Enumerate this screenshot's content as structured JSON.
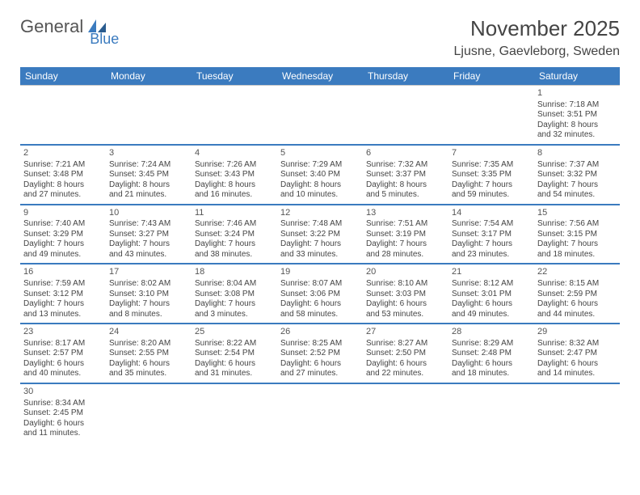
{
  "logo": {
    "part1": "General",
    "part2": "Blue"
  },
  "header": {
    "title": "November 2025",
    "location": "Ljusne, Gaevleborg, Sweden"
  },
  "dow": [
    "Sunday",
    "Monday",
    "Tuesday",
    "Wednesday",
    "Thursday",
    "Friday",
    "Saturday"
  ],
  "colors": {
    "accent": "#3b7bbf",
    "border": "#c8c8c8",
    "text": "#444444",
    "bg": "#ffffff"
  },
  "weeks": [
    [
      null,
      null,
      null,
      null,
      null,
      null,
      {
        "n": "1",
        "sr": "Sunrise: 7:18 AM",
        "ss": "Sunset: 3:51 PM",
        "d1": "Daylight: 8 hours",
        "d2": "and 32 minutes."
      }
    ],
    [
      {
        "n": "2",
        "sr": "Sunrise: 7:21 AM",
        "ss": "Sunset: 3:48 PM",
        "d1": "Daylight: 8 hours",
        "d2": "and 27 minutes."
      },
      {
        "n": "3",
        "sr": "Sunrise: 7:24 AM",
        "ss": "Sunset: 3:45 PM",
        "d1": "Daylight: 8 hours",
        "d2": "and 21 minutes."
      },
      {
        "n": "4",
        "sr": "Sunrise: 7:26 AM",
        "ss": "Sunset: 3:43 PM",
        "d1": "Daylight: 8 hours",
        "d2": "and 16 minutes."
      },
      {
        "n": "5",
        "sr": "Sunrise: 7:29 AM",
        "ss": "Sunset: 3:40 PM",
        "d1": "Daylight: 8 hours",
        "d2": "and 10 minutes."
      },
      {
        "n": "6",
        "sr": "Sunrise: 7:32 AM",
        "ss": "Sunset: 3:37 PM",
        "d1": "Daylight: 8 hours",
        "d2": "and 5 minutes."
      },
      {
        "n": "7",
        "sr": "Sunrise: 7:35 AM",
        "ss": "Sunset: 3:35 PM",
        "d1": "Daylight: 7 hours",
        "d2": "and 59 minutes."
      },
      {
        "n": "8",
        "sr": "Sunrise: 7:37 AM",
        "ss": "Sunset: 3:32 PM",
        "d1": "Daylight: 7 hours",
        "d2": "and 54 minutes."
      }
    ],
    [
      {
        "n": "9",
        "sr": "Sunrise: 7:40 AM",
        "ss": "Sunset: 3:29 PM",
        "d1": "Daylight: 7 hours",
        "d2": "and 49 minutes."
      },
      {
        "n": "10",
        "sr": "Sunrise: 7:43 AM",
        "ss": "Sunset: 3:27 PM",
        "d1": "Daylight: 7 hours",
        "d2": "and 43 minutes."
      },
      {
        "n": "11",
        "sr": "Sunrise: 7:46 AM",
        "ss": "Sunset: 3:24 PM",
        "d1": "Daylight: 7 hours",
        "d2": "and 38 minutes."
      },
      {
        "n": "12",
        "sr": "Sunrise: 7:48 AM",
        "ss": "Sunset: 3:22 PM",
        "d1": "Daylight: 7 hours",
        "d2": "and 33 minutes."
      },
      {
        "n": "13",
        "sr": "Sunrise: 7:51 AM",
        "ss": "Sunset: 3:19 PM",
        "d1": "Daylight: 7 hours",
        "d2": "and 28 minutes."
      },
      {
        "n": "14",
        "sr": "Sunrise: 7:54 AM",
        "ss": "Sunset: 3:17 PM",
        "d1": "Daylight: 7 hours",
        "d2": "and 23 minutes."
      },
      {
        "n": "15",
        "sr": "Sunrise: 7:56 AM",
        "ss": "Sunset: 3:15 PM",
        "d1": "Daylight: 7 hours",
        "d2": "and 18 minutes."
      }
    ],
    [
      {
        "n": "16",
        "sr": "Sunrise: 7:59 AM",
        "ss": "Sunset: 3:12 PM",
        "d1": "Daylight: 7 hours",
        "d2": "and 13 minutes."
      },
      {
        "n": "17",
        "sr": "Sunrise: 8:02 AM",
        "ss": "Sunset: 3:10 PM",
        "d1": "Daylight: 7 hours",
        "d2": "and 8 minutes."
      },
      {
        "n": "18",
        "sr": "Sunrise: 8:04 AM",
        "ss": "Sunset: 3:08 PM",
        "d1": "Daylight: 7 hours",
        "d2": "and 3 minutes."
      },
      {
        "n": "19",
        "sr": "Sunrise: 8:07 AM",
        "ss": "Sunset: 3:06 PM",
        "d1": "Daylight: 6 hours",
        "d2": "and 58 minutes."
      },
      {
        "n": "20",
        "sr": "Sunrise: 8:10 AM",
        "ss": "Sunset: 3:03 PM",
        "d1": "Daylight: 6 hours",
        "d2": "and 53 minutes."
      },
      {
        "n": "21",
        "sr": "Sunrise: 8:12 AM",
        "ss": "Sunset: 3:01 PM",
        "d1": "Daylight: 6 hours",
        "d2": "and 49 minutes."
      },
      {
        "n": "22",
        "sr": "Sunrise: 8:15 AM",
        "ss": "Sunset: 2:59 PM",
        "d1": "Daylight: 6 hours",
        "d2": "and 44 minutes."
      }
    ],
    [
      {
        "n": "23",
        "sr": "Sunrise: 8:17 AM",
        "ss": "Sunset: 2:57 PM",
        "d1": "Daylight: 6 hours",
        "d2": "and 40 minutes."
      },
      {
        "n": "24",
        "sr": "Sunrise: 8:20 AM",
        "ss": "Sunset: 2:55 PM",
        "d1": "Daylight: 6 hours",
        "d2": "and 35 minutes."
      },
      {
        "n": "25",
        "sr": "Sunrise: 8:22 AM",
        "ss": "Sunset: 2:54 PM",
        "d1": "Daylight: 6 hours",
        "d2": "and 31 minutes."
      },
      {
        "n": "26",
        "sr": "Sunrise: 8:25 AM",
        "ss": "Sunset: 2:52 PM",
        "d1": "Daylight: 6 hours",
        "d2": "and 27 minutes."
      },
      {
        "n": "27",
        "sr": "Sunrise: 8:27 AM",
        "ss": "Sunset: 2:50 PM",
        "d1": "Daylight: 6 hours",
        "d2": "and 22 minutes."
      },
      {
        "n": "28",
        "sr": "Sunrise: 8:29 AM",
        "ss": "Sunset: 2:48 PM",
        "d1": "Daylight: 6 hours",
        "d2": "and 18 minutes."
      },
      {
        "n": "29",
        "sr": "Sunrise: 8:32 AM",
        "ss": "Sunset: 2:47 PM",
        "d1": "Daylight: 6 hours",
        "d2": "and 14 minutes."
      }
    ],
    [
      {
        "n": "30",
        "sr": "Sunrise: 8:34 AM",
        "ss": "Sunset: 2:45 PM",
        "d1": "Daylight: 6 hours",
        "d2": "and 11 minutes."
      },
      null,
      null,
      null,
      null,
      null,
      null
    ]
  ]
}
